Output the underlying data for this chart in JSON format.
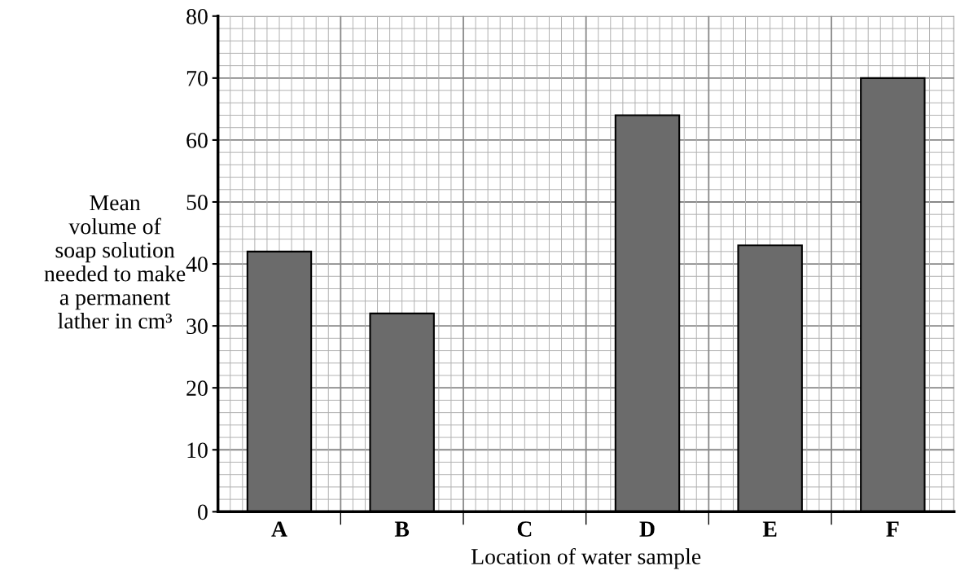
{
  "chart_data": {
    "type": "bar",
    "categories": [
      "A",
      "B",
      "C",
      "D",
      "E",
      "F"
    ],
    "values": [
      42,
      32,
      null,
      64,
      43,
      70
    ],
    "color": "#6b6b6b",
    "xlabel": "Location of water sample",
    "ylabel": "Mean\nvolume of\nsoap solution\nneeded to make\na permanent\nlather in cm³",
    "ylim": [
      0,
      80
    ],
    "yticks": [
      0,
      10,
      20,
      30,
      40,
      50,
      60,
      70,
      80
    ],
    "grid": true
  }
}
